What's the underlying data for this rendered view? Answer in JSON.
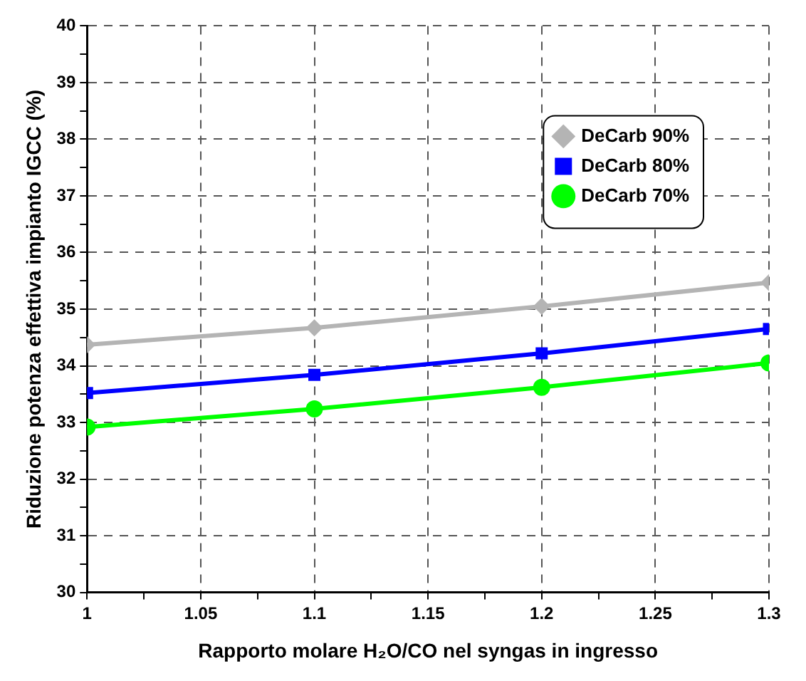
{
  "chart_data": {
    "type": "line",
    "x": [
      1,
      1.1,
      1.2,
      1.3
    ],
    "xlabel": "Rapporto molare H₂O/CO nel syngas in ingresso",
    "ylabel": "Riduzione potenza effettiva impianto IGCC (%)",
    "series": [
      {
        "name": "DeCarb 90%",
        "color": "#b4b4b4",
        "marker": "diamond",
        "values": [
          34.37,
          34.67,
          35.05,
          35.47
        ]
      },
      {
        "name": "DeCarb 80%",
        "color": "#0000ff",
        "marker": "square",
        "values": [
          33.52,
          33.84,
          34.22,
          34.65
        ]
      },
      {
        "name": "DeCarb 70%",
        "color": "#00ff00",
        "marker": "circle",
        "values": [
          32.92,
          33.24,
          33.62,
          34.05
        ]
      }
    ],
    "xlim": [
      1,
      1.3
    ],
    "xticks": [
      1,
      {
        "value": 1.025,
        "label": null
      },
      1.05,
      {
        "value": 1.075,
        "label": null
      },
      1.1,
      {
        "value": 1.125,
        "label": null
      },
      1.15,
      {
        "value": 1.175,
        "label": null
      },
      1.2,
      {
        "value": 1.225,
        "label": null
      },
      1.25,
      {
        "value": 1.275,
        "label": null
      },
      1.3
    ],
    "ylim": [
      30,
      40
    ],
    "yticks": [
      30,
      {
        "value": 30.5,
        "label": null
      },
      31,
      {
        "value": 31.5,
        "label": null
      },
      32,
      {
        "value": 32.5,
        "label": null
      },
      33,
      {
        "value": 33.5,
        "label": null
      },
      34,
      {
        "value": 34.5,
        "label": null
      },
      35,
      {
        "value": 35.5,
        "label": null
      },
      36,
      {
        "value": 36.5,
        "label": null
      },
      37,
      {
        "value": 37.5,
        "label": null
      },
      38,
      {
        "value": 38.5,
        "label": null
      },
      39,
      {
        "value": 39.5,
        "label": null
      },
      40
    ],
    "grid": true,
    "legend": "top right",
    "line_style": "solid"
  }
}
